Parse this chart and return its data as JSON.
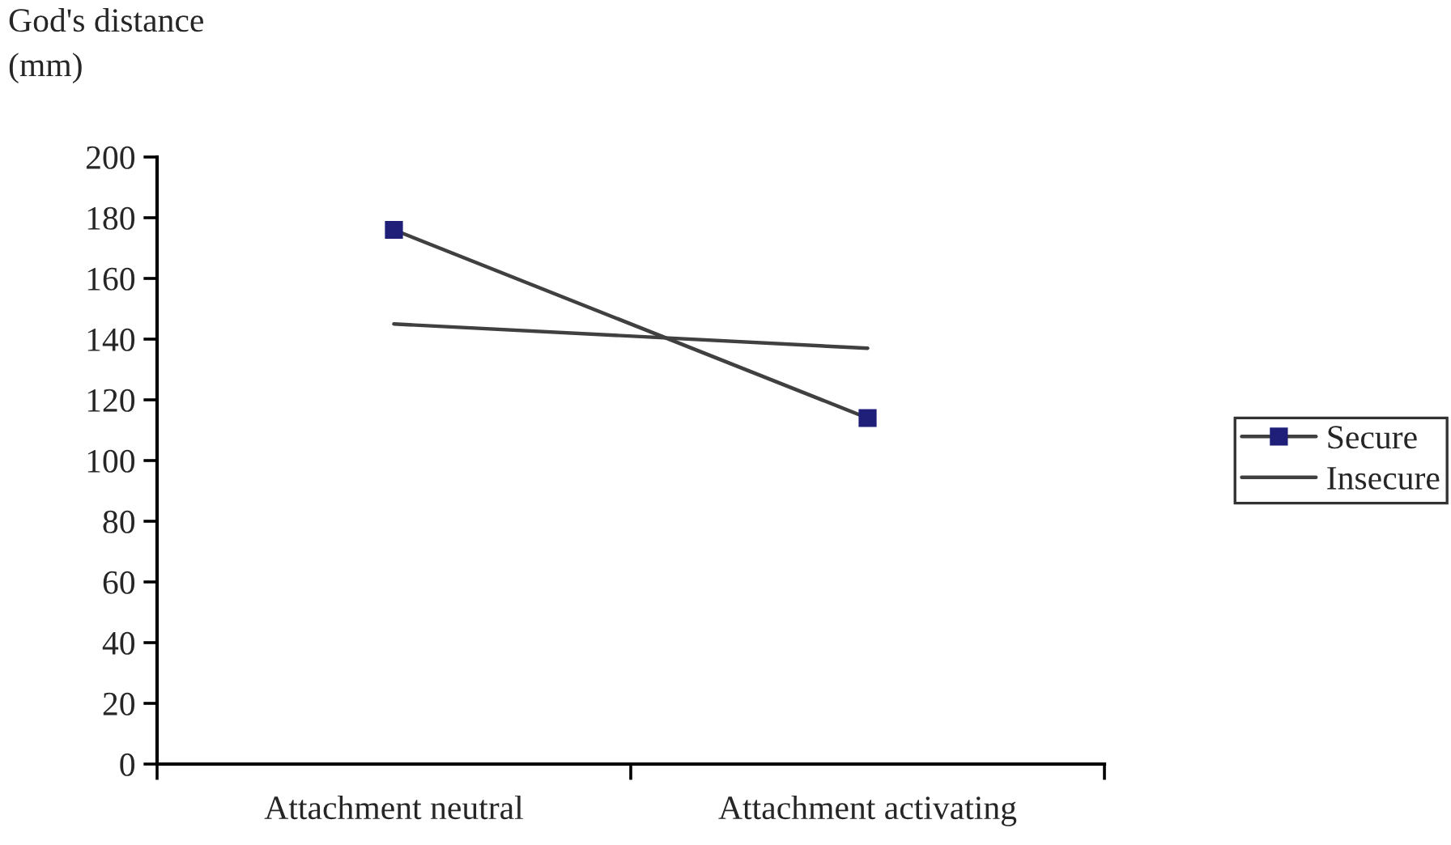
{
  "chart_data": {
    "type": "line",
    "ylabel": "God's distance\n(mm)",
    "categories": [
      "Attachment neutral",
      "Attachment activating"
    ],
    "series": [
      {
        "name": "Secure",
        "color": "#1f1f7a",
        "values": [
          176,
          114
        ],
        "marker": "square"
      },
      {
        "name": "Insecure",
        "color": "#404040",
        "values": [
          145,
          137
        ],
        "marker": "none"
      }
    ],
    "ylim": [
      0,
      200
    ],
    "yticks": [
      0,
      20,
      40,
      60,
      80,
      100,
      120,
      140,
      160,
      180,
      200
    ],
    "grid": false,
    "legend": "right"
  }
}
